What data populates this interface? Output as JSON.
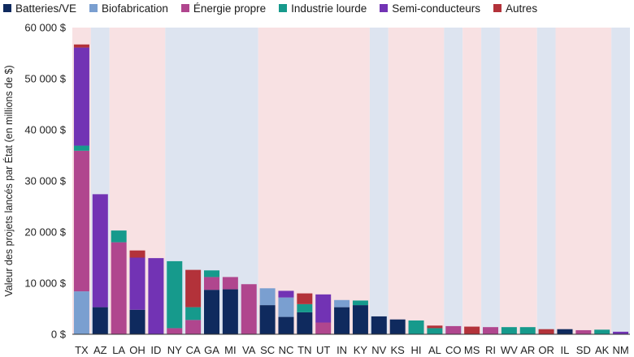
{
  "chart_data": {
    "type": "bar",
    "stacked": true,
    "ylabel": "Valeur des projets lancés par État (en millions de $)",
    "xlabel": "",
    "ylim": [
      0,
      60000
    ],
    "yticks": [
      0,
      10000,
      20000,
      30000,
      40000,
      50000,
      60000
    ],
    "ytick_labels": [
      "0 $",
      "10 000 $",
      "20 000 $",
      "30 000 $",
      "40 000 $",
      "50 000 $",
      "60 000 $"
    ],
    "legend_position": "top-left",
    "categories": [
      "TX",
      "AZ",
      "LA",
      "OH",
      "ID",
      "NY",
      "CA",
      "GA",
      "MI",
      "VA",
      "SC",
      "NC",
      "TN",
      "UT",
      "IN",
      "KY",
      "NV",
      "KS",
      "HI",
      "AL",
      "CO",
      "MS",
      "RI",
      "WV",
      "AR",
      "OR",
      "IL",
      "SD",
      "AK",
      "NM"
    ],
    "background_bands": [
      {
        "color": "#f8e1e3",
        "from": 0,
        "to": 0
      },
      {
        "color": "#dde4f0",
        "from": 1,
        "to": 1
      },
      {
        "color": "#f8e1e3",
        "from": 2,
        "to": 4
      },
      {
        "color": "#dde4f0",
        "from": 5,
        "to": 9
      },
      {
        "color": "#f8e1e3",
        "from": 10,
        "to": 15
      },
      {
        "color": "#dde4f0",
        "from": 16,
        "to": 16
      },
      {
        "color": "#f8e1e3",
        "from": 17,
        "to": 19
      },
      {
        "color": "#dde4f0",
        "from": 20,
        "to": 20
      },
      {
        "color": "#f8e1e3",
        "from": 21,
        "to": 21
      },
      {
        "color": "#dde4f0",
        "from": 22,
        "to": 22
      },
      {
        "color": "#f8e1e3",
        "from": 23,
        "to": 24
      },
      {
        "color": "#dde4f0",
        "from": 25,
        "to": 25
      },
      {
        "color": "#f8e1e3",
        "from": 26,
        "to": 28
      },
      {
        "color": "#dde4f0",
        "from": 29,
        "to": 29
      }
    ],
    "series": [
      {
        "name": "Batteries/VE",
        "color": "#0f2a5e",
        "values": [
          0,
          5300,
          0,
          4800,
          0,
          0,
          0,
          8700,
          8800,
          0,
          5700,
          3400,
          4300,
          0,
          5300,
          5700,
          3500,
          2900,
          0,
          0,
          0,
          0,
          0,
          0,
          0,
          0,
          1000,
          0,
          0,
          0
        ]
      },
      {
        "name": "Biofabrication",
        "color": "#7a9fd0",
        "values": [
          8400,
          0,
          0,
          0,
          0,
          0,
          0,
          0,
          0,
          0,
          3300,
          3800,
          0,
          0,
          1400,
          0,
          0,
          0,
          0,
          0,
          0,
          0,
          0,
          0,
          0,
          0,
          0,
          0,
          0,
          0
        ]
      },
      {
        "name": "Énergie propre",
        "color": "#b0468e",
        "values": [
          27500,
          0,
          18000,
          0,
          0,
          1200,
          2800,
          2500,
          2400,
          9800,
          0,
          0,
          0,
          2300,
          0,
          0,
          0,
          0,
          0,
          0,
          1600,
          0,
          1400,
          0,
          0,
          0,
          0,
          800,
          0,
          0
        ]
      },
      {
        "name": "Industrie lourde",
        "color": "#169a8c",
        "values": [
          1000,
          0,
          2300,
          0,
          0,
          13100,
          2500,
          1300,
          0,
          0,
          0,
          0,
          1600,
          0,
          0,
          900,
          0,
          0,
          2700,
          1200,
          0,
          0,
          0,
          1400,
          1400,
          0,
          0,
          0,
          900,
          0
        ]
      },
      {
        "name": "Semi-conducteurs",
        "color": "#7233b4",
        "values": [
          19200,
          22100,
          0,
          10200,
          14900,
          0,
          0,
          0,
          0,
          0,
          0,
          1300,
          0,
          5500,
          0,
          0,
          0,
          0,
          0,
          0,
          0,
          0,
          0,
          0,
          0,
          0,
          0,
          0,
          0,
          500
        ]
      },
      {
        "name": "Autres",
        "color": "#b3323a",
        "values": [
          600,
          0,
          0,
          1400,
          0,
          0,
          7300,
          0,
          0,
          0,
          0,
          0,
          2100,
          0,
          0,
          0,
          0,
          0,
          0,
          500,
          0,
          1500,
          0,
          0,
          0,
          1000,
          0,
          0,
          0,
          0
        ]
      }
    ]
  }
}
